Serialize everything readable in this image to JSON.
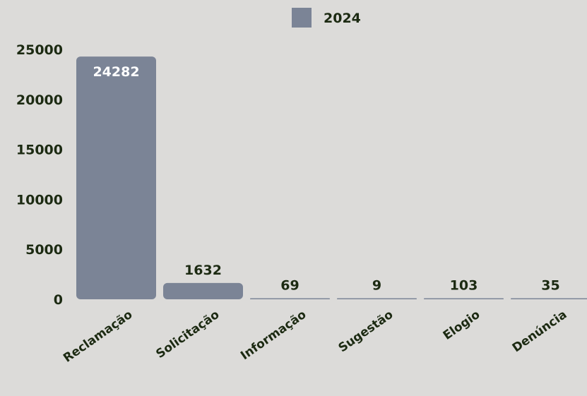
{
  "chart_data": {
    "type": "bar",
    "categories": [
      "Reclamação",
      "Solicitação",
      "Informação",
      "Sugestão",
      "Elogio",
      "Denúncia"
    ],
    "series": [
      {
        "name": "2024",
        "values": [
          24282,
          1632,
          69,
          9,
          103,
          35
        ]
      }
    ],
    "title": "",
    "xlabel": "",
    "ylabel": "",
    "ylim": [
      0,
      25000
    ],
    "yticks": [
      0,
      5000,
      10000,
      15000,
      20000,
      25000
    ],
    "grid": false,
    "legend": "top-center",
    "colors": {
      "bar": "#7b8496",
      "text": "#1c2a12",
      "background": "#dcdbd9"
    }
  }
}
